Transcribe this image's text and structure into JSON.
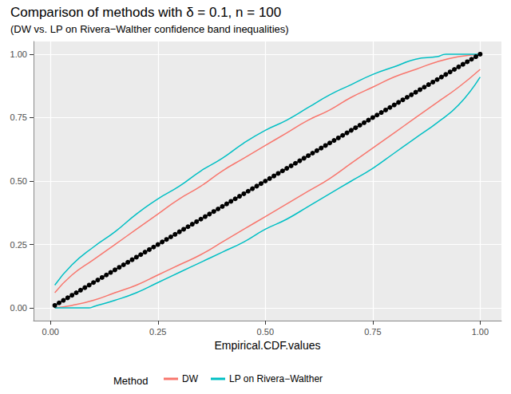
{
  "chart_data": {
    "type": "line",
    "title": "Comparison of methods with δ = 0.1, n = 100",
    "subtitle": "(DW vs. LP on Rivera−Walther confidence band inequalities)",
    "x_label": "Empirical.CDF.values",
    "legend_title": "Method",
    "legend": "bottom",
    "grid": true,
    "xlim": [
      -0.0395,
      1.0495
    ],
    "ylim": [
      -0.05,
      1.05
    ],
    "xticks": [
      {
        "value": 0,
        "label": "0.00"
      },
      {
        "value": 0.25,
        "label": "0.25"
      },
      {
        "value": 0.5,
        "label": "0.50"
      },
      {
        "value": 0.75,
        "label": "0.75"
      },
      {
        "value": 1,
        "label": "1.00"
      }
    ],
    "yticks": [
      {
        "value": 0,
        "label": "0.00"
      },
      {
        "value": 0.25,
        "label": "0.25"
      },
      {
        "value": 0.5,
        "label": "0.50"
      },
      {
        "value": 0.75,
        "label": "0.75"
      },
      {
        "value": 1,
        "label": "1.00"
      }
    ],
    "series": [
      {
        "name": "DW",
        "color": "#F8766D",
        "marker": "none",
        "line_style": "solid",
        "x": [
          0.01,
          0.05,
          0.1,
          0.15,
          0.2,
          0.25,
          0.3,
          0.35,
          0.4,
          0.45,
          0.5,
          0.55,
          0.6,
          0.65,
          0.7,
          0.75,
          0.8,
          0.85,
          0.9,
          0.95,
          1.0
        ],
        "values": [
          0.06,
          0.13,
          0.19,
          0.25,
          0.31,
          0.37,
          0.43,
          0.48,
          0.54,
          0.59,
          0.64,
          0.69,
          0.74,
          0.78,
          0.83,
          0.87,
          0.91,
          0.94,
          0.97,
          0.99,
          1.0
        ]
      },
      {
        "name": "DW",
        "color": "#F8766D",
        "marker": "none",
        "line_style": "solid",
        "x": [
          0.01,
          0.05,
          0.1,
          0.15,
          0.2,
          0.25,
          0.3,
          0.35,
          0.4,
          0.45,
          0.5,
          0.55,
          0.6,
          0.65,
          0.7,
          0.75,
          0.8,
          0.85,
          0.9,
          0.95,
          1.0
        ],
        "values": [
          0,
          0.01,
          0.03,
          0.06,
          0.09,
          0.13,
          0.17,
          0.21,
          0.26,
          0.31,
          0.36,
          0.41,
          0.46,
          0.51,
          0.57,
          0.63,
          0.69,
          0.75,
          0.81,
          0.87,
          0.94
        ]
      },
      {
        "name": "LP on Rivera−Walther",
        "color": "#00BFC4",
        "marker": "none",
        "line_style": "solid",
        "x": [
          0.01,
          0.05,
          0.1,
          0.15,
          0.2,
          0.25,
          0.3,
          0.35,
          0.4,
          0.45,
          0.5,
          0.55,
          0.6,
          0.65,
          0.7,
          0.75,
          0.8,
          0.85,
          0.9,
          0.92,
          0.95,
          1.0
        ],
        "values": [
          0.09,
          0.17,
          0.24,
          0.3,
          0.37,
          0.43,
          0.48,
          0.54,
          0.59,
          0.65,
          0.7,
          0.74,
          0.79,
          0.84,
          0.88,
          0.92,
          0.95,
          0.98,
          0.99,
          1.0,
          1.0,
          1.0
        ]
      },
      {
        "name": "LP on Rivera−Walther",
        "color": "#00BFC4",
        "marker": "none",
        "line_style": "solid",
        "x": [
          0.01,
          0.05,
          0.09,
          0.1,
          0.15,
          0.2,
          0.25,
          0.3,
          0.35,
          0.4,
          0.45,
          0.5,
          0.55,
          0.6,
          0.65,
          0.7,
          0.75,
          0.8,
          0.85,
          0.9,
          0.95,
          1.0
        ],
        "values": [
          0,
          0,
          0,
          0.005,
          0.03,
          0.06,
          0.1,
          0.14,
          0.18,
          0.22,
          0.26,
          0.31,
          0.35,
          0.4,
          0.45,
          0.5,
          0.55,
          0.61,
          0.67,
          0.73,
          0.8,
          0.91
        ]
      },
      {
        "color": "#000000",
        "marker": "circle",
        "line_style": "solid",
        "x": [
          0.01,
          0.02,
          0.03,
          0.04,
          0.05,
          0.06,
          0.07,
          0.08,
          0.09,
          0.1,
          0.11,
          0.12,
          0.13,
          0.14,
          0.15,
          0.16,
          0.17,
          0.18,
          0.19,
          0.2,
          0.21,
          0.22,
          0.23,
          0.24,
          0.25,
          0.26,
          0.27,
          0.28,
          0.29,
          0.3,
          0.31,
          0.32,
          0.33,
          0.34,
          0.35,
          0.36,
          0.37,
          0.38,
          0.39,
          0.4,
          0.41,
          0.42,
          0.43,
          0.44,
          0.45,
          0.46,
          0.47,
          0.48,
          0.49,
          0.5,
          0.51,
          0.52,
          0.53,
          0.54,
          0.55,
          0.56,
          0.57,
          0.58,
          0.59,
          0.6,
          0.61,
          0.62,
          0.63,
          0.64,
          0.65,
          0.66,
          0.67,
          0.68,
          0.69,
          0.7,
          0.71,
          0.72,
          0.73,
          0.74,
          0.75,
          0.76,
          0.77,
          0.78,
          0.79,
          0.8,
          0.81,
          0.82,
          0.83,
          0.84,
          0.85,
          0.86,
          0.87,
          0.88,
          0.89,
          0.9,
          0.91,
          0.92,
          0.93,
          0.94,
          0.95,
          0.96,
          0.97,
          0.98,
          0.99,
          1.0
        ],
        "values": [
          0.01,
          0.02,
          0.03,
          0.04,
          0.05,
          0.06,
          0.07,
          0.08,
          0.09,
          0.1,
          0.11,
          0.12,
          0.13,
          0.14,
          0.15,
          0.16,
          0.17,
          0.18,
          0.19,
          0.2,
          0.21,
          0.22,
          0.23,
          0.24,
          0.25,
          0.26,
          0.27,
          0.28,
          0.29,
          0.3,
          0.31,
          0.32,
          0.33,
          0.34,
          0.35,
          0.36,
          0.37,
          0.38,
          0.39,
          0.4,
          0.41,
          0.42,
          0.43,
          0.44,
          0.45,
          0.46,
          0.47,
          0.48,
          0.49,
          0.5,
          0.51,
          0.52,
          0.53,
          0.54,
          0.55,
          0.56,
          0.57,
          0.58,
          0.59,
          0.6,
          0.61,
          0.62,
          0.63,
          0.64,
          0.65,
          0.66,
          0.67,
          0.68,
          0.69,
          0.7,
          0.71,
          0.72,
          0.73,
          0.74,
          0.75,
          0.76,
          0.77,
          0.78,
          0.79,
          0.8,
          0.81,
          0.82,
          0.83,
          0.84,
          0.85,
          0.86,
          0.87,
          0.88,
          0.89,
          0.9,
          0.91,
          0.92,
          0.93,
          0.94,
          0.95,
          0.96,
          0.97,
          0.98,
          0.99,
          1.0
        ]
      }
    ]
  }
}
